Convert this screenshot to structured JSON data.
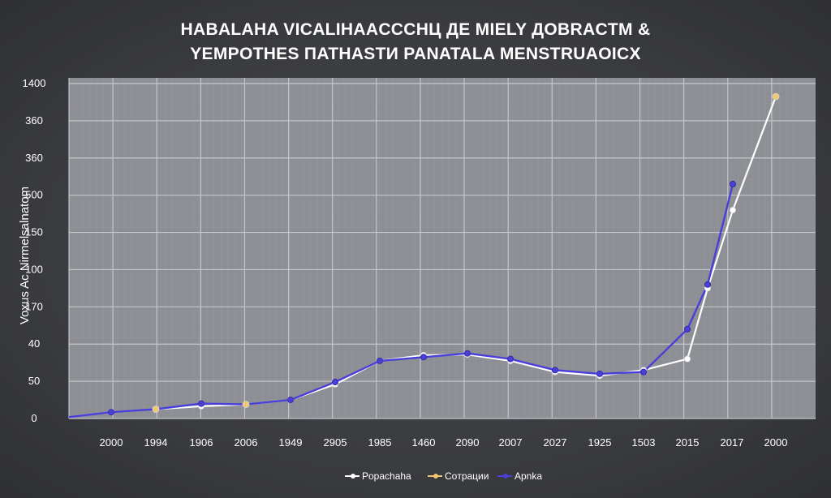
{
  "chart_data": {
    "type": "line",
    "title_line1": "HABALAHA VICALIHAACCCHЦ ДЕ MIELY ДOBRACTM &",
    "title_line2": "YEMPOTHES ПATHASTИ PANATALA MENSTRUAOICX",
    "ylabel": "Voxus Ac Nirmelsalnatom",
    "categories": [
      "2000",
      "1994",
      "1906",
      "2006",
      "1949",
      "2905",
      "1985",
      "1460",
      "2090",
      "2007",
      "2027",
      "1925",
      "1503",
      "2015",
      "",
      "2017",
      "2000"
    ],
    "y_tick_labels": [
      "0",
      "50",
      "40",
      "170",
      "100",
      "150",
      "500",
      "360",
      "360",
      "1400"
    ],
    "y_tick_positions": [
      0,
      1,
      2,
      3,
      4,
      5,
      6,
      7,
      8,
      9
    ],
    "ylim": [
      0,
      9
    ],
    "grid": true,
    "legend_position": "bottom-center",
    "series": [
      {
        "name": "Poрachaha",
        "color": "#ffffff",
        "values": [
          0.17,
          0.25,
          0.33,
          0.38,
          0.5,
          0.92,
          1.55,
          1.7,
          1.72,
          1.55,
          1.25,
          1.15,
          1.3,
          1.6,
          3.5,
          5.6,
          8.65
        ]
      },
      {
        "name": "Coтрaции",
        "color": "#f0c870",
        "values": [
          null,
          0.25,
          null,
          0.38,
          null,
          null,
          null,
          null,
          null,
          null,
          null,
          null,
          null,
          null,
          null,
          null,
          8.65
        ]
      },
      {
        "name": "Apnka",
        "color": "#4a3fd8",
        "values": [
          0.17,
          0.25,
          0.4,
          0.38,
          0.5,
          0.98,
          1.55,
          1.65,
          1.75,
          1.6,
          1.3,
          1.2,
          1.25,
          2.4,
          3.6,
          6.3,
          null
        ]
      }
    ]
  }
}
